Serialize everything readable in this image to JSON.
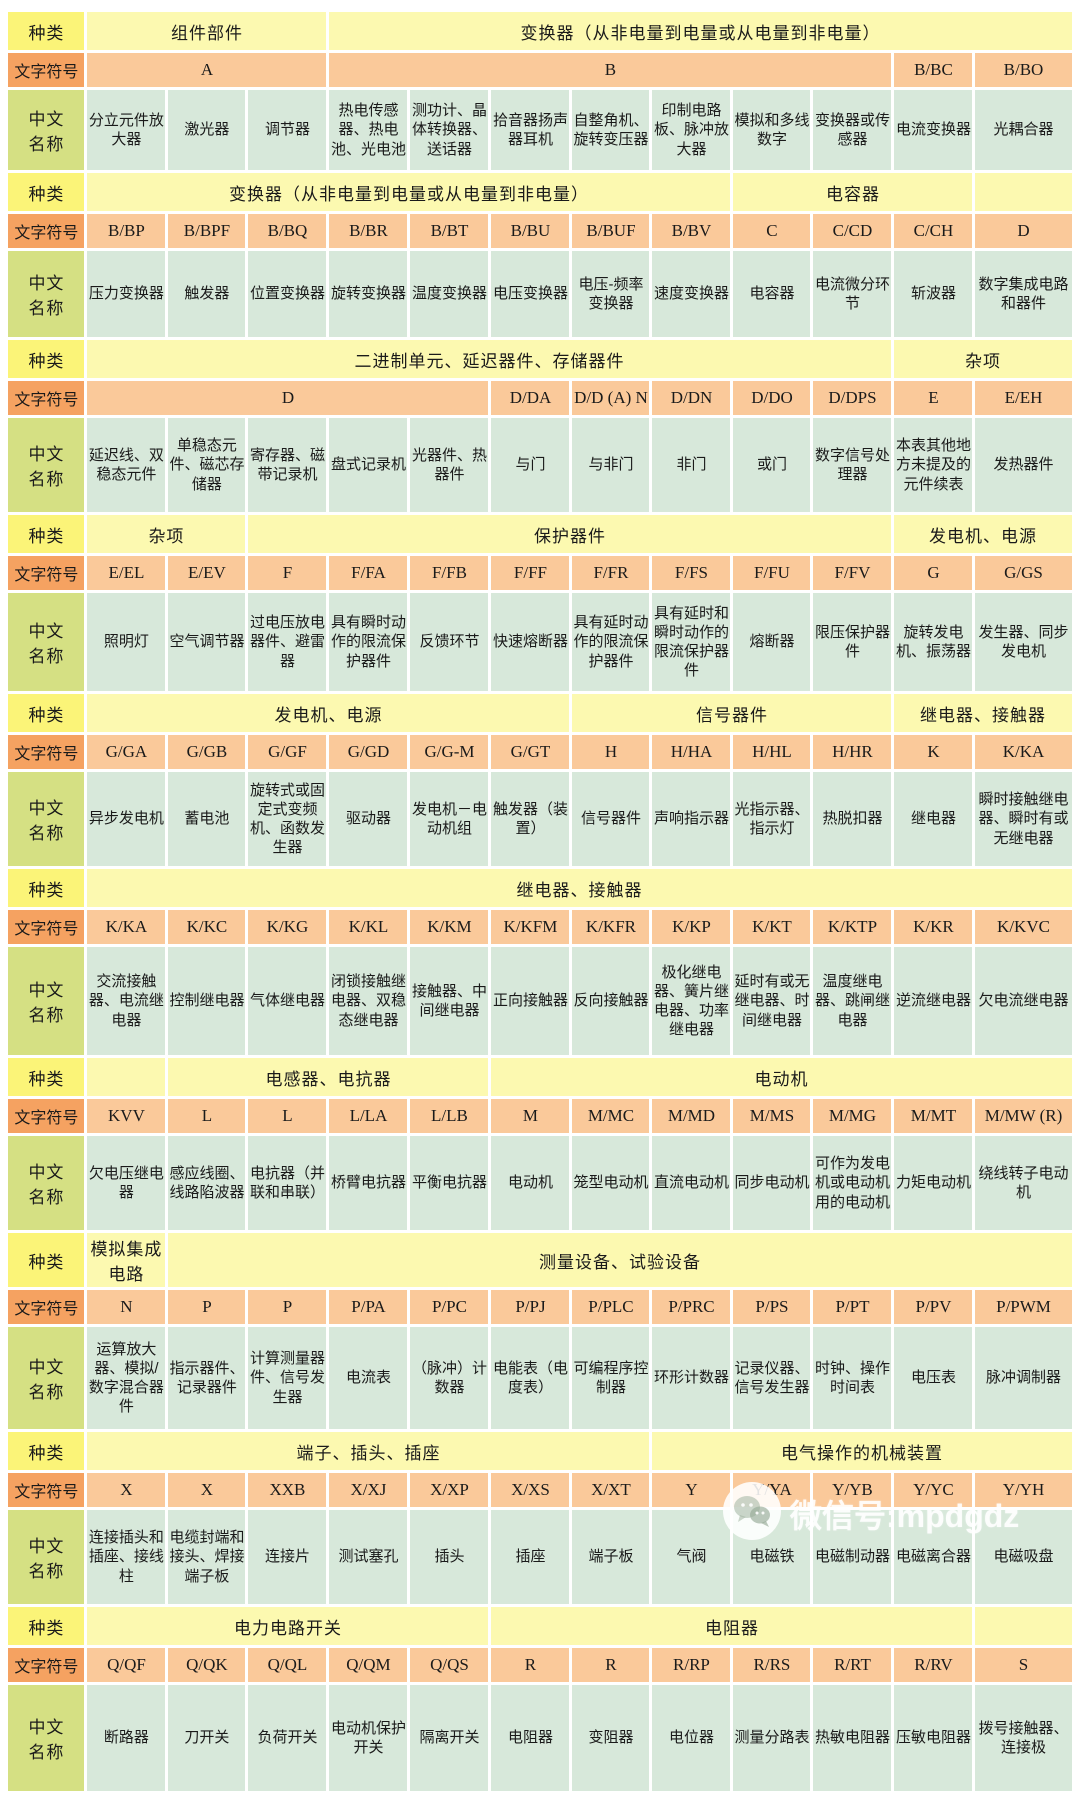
{
  "row_labels": {
    "category": "种类",
    "symbol": "文字符号",
    "name": "中文名称"
  },
  "watermark": {
    "icon": "wechat-icon",
    "text": "微信号:mpdgdz"
  },
  "colors": {
    "category_label_bg": "#fbf478",
    "category_cell_bg": "#fcf9b0",
    "symbol_label_bg": "#f5a261",
    "symbol_cell_bg": "#fac99a",
    "name_label_bg": "#d5e083",
    "name_cell_bg": "#d7e8da",
    "grid_gap": "#ffffff"
  },
  "groups": [
    {
      "category": [
        {
          "text": "组件部件",
          "span": 3
        },
        {
          "text": "变换器（从非电量到电量或从电量到非电量）",
          "span": 9
        }
      ],
      "symbols": [
        {
          "text": "A",
          "span": 3
        },
        {
          "text": "B",
          "span": 7
        },
        "B/BC",
        "B/BO"
      ],
      "names": [
        "分立元件放大器",
        "激光器",
        "调节器",
        "热电传感器、热电池、光电池",
        "测功计、晶体转换器、送话器",
        "拾音器扬声器耳机",
        "自整角机、旋转变压器",
        "印制电路板、脉冲放大器",
        "模拟和多线数字",
        "变换器或传感器",
        "电流变换器",
        "光耦合器"
      ]
    },
    {
      "category": [
        {
          "text": "变换器（从非电量到电量或从电量到非电量）",
          "span": 8
        },
        {
          "text": "电容器",
          "span": 3
        },
        {
          "text": "",
          "span": 1
        }
      ],
      "symbols": [
        "B/BP",
        "B/BPF",
        "B/BQ",
        "B/BR",
        "B/BT",
        "B/BU",
        "B/BUF",
        "B/BV",
        "C",
        "C/CD",
        "C/CH",
        "D"
      ],
      "names": [
        "压力变换器",
        "触发器",
        "位置变换器",
        "旋转变换器",
        "温度变换器",
        "电压变换器",
        "电压-频率变换器",
        "速度变换器",
        "电容器",
        "电流微分环节",
        "斩波器",
        "数字集成电路和器件"
      ]
    },
    {
      "category": [
        {
          "text": "二进制单元、延迟器件、存储器件",
          "span": 10
        },
        {
          "text": "杂项",
          "span": 2
        }
      ],
      "symbols": [
        {
          "text": "D",
          "span": 5
        },
        "D/DA",
        "D/D (A) N",
        "D/DN",
        "D/DO",
        "D/DPS",
        "E",
        "E/EH"
      ],
      "names": [
        "延迟线、双稳态元件",
        "单稳态元件、磁芯存储器",
        "寄存器、磁带记录机",
        "盘式记录机",
        "光器件、热器件",
        "与门",
        "与非门",
        "非门",
        "或门",
        "数字信号处理器",
        "本表其他地方未提及的元件续表",
        "发热器件"
      ]
    },
    {
      "category": [
        {
          "text": "杂项",
          "span": 2
        },
        {
          "text": "保护器件",
          "span": 8
        },
        {
          "text": "发电机、电源",
          "span": 2
        }
      ],
      "symbols": [
        "E/EL",
        "E/EV",
        "F",
        "F/FA",
        "F/FB",
        "F/FF",
        "F/FR",
        "F/FS",
        "F/FU",
        "F/FV",
        "G",
        "G/GS"
      ],
      "names": [
        "照明灯",
        "空气调节器",
        "过电压放电器件、避雷器",
        "具有瞬时动作的限流保护器件",
        "反馈环节",
        "快速熔断器",
        "具有延时动作的限流保护器件",
        "具有延时和瞬时动作的限流保护器件",
        "熔断器",
        "限压保护器件",
        "旋转发电机、振荡器",
        "发生器、同步发电机"
      ]
    },
    {
      "category": [
        {
          "text": "发电机、电源",
          "span": 6
        },
        {
          "text": "信号器件",
          "span": 4
        },
        {
          "text": "继电器、接触器",
          "span": 2
        }
      ],
      "symbols": [
        "G/GA",
        "G/GB",
        "G/GF",
        "G/GD",
        "G/G-M",
        "G/GT",
        "H",
        "H/HA",
        "H/HL",
        "H/HR",
        "K",
        "K/KA"
      ],
      "names": [
        "异步发电机",
        "蓄电池",
        "旋转式或固定式变频机、函数发生器",
        "驱动器",
        "发电机－电动机组",
        "触发器（装置）",
        "信号器件",
        "声响指示器",
        "光指示器、指示灯",
        "热脱扣器",
        "继电器",
        "瞬时接触继电器、瞬时有或无继电器"
      ]
    },
    {
      "category": [
        {
          "text": "继电器、接触器",
          "span": 12
        }
      ],
      "symbols": [
        "K/KA",
        "K/KC",
        "K/KG",
        "K/KL",
        "K/KM",
        "K/KFM",
        "K/KFR",
        "K/KP",
        "K/KT",
        "K/KTP",
        "K/KR",
        "K/KVC"
      ],
      "names": [
        "交流接触器、电流继电器",
        "控制继电器",
        "气体继电器",
        "闭锁接触继电器、双稳态继电器",
        "接触器、中间继电器",
        "正向接触器",
        "反向接触器",
        "极化继电器、簧片继电器、功率继电器",
        "延时有或无继电器、时间继电器",
        "温度继电器、跳闸继电器",
        "逆流继电器",
        "欠电流继电器"
      ]
    },
    {
      "category": [
        {
          "text": "",
          "span": 1
        },
        {
          "text": "电感器、电抗器",
          "span": 4
        },
        {
          "text": "电动机",
          "span": 7
        }
      ],
      "symbols": [
        "KVV",
        "L",
        "L",
        "L/LA",
        "L/LB",
        "M",
        "M/MC",
        "M/MD",
        "M/MS",
        "M/MG",
        "M/MT",
        "M/MW (R)"
      ],
      "names": [
        "欠电压继电器",
        "感应线圈、线路陷波器",
        "电抗器（并联和串联）",
        "桥臂电抗器",
        "平衡电抗器",
        "电动机",
        "笼型电动机",
        "直流电动机",
        "同步电动机",
        "可作为发电机或电动机用的电动机",
        "力矩电动机",
        "绕线转子电动机"
      ]
    },
    {
      "category": [
        {
          "text": "模拟集成电路",
          "span": 1
        },
        {
          "text": "测量设备、试验设备",
          "span": 11
        }
      ],
      "symbols": [
        "N",
        "P",
        "P",
        "P/PA",
        "P/PC",
        "P/PJ",
        "P/PLC",
        "P/PRC",
        "P/PS",
        "P/PT",
        "P/PV",
        "P/PWM"
      ],
      "names": [
        "运算放大器、模拟/数字混合器件",
        "指示器件、记录器件",
        "计算测量器件、信号发生器",
        "电流表",
        "（脉冲）计数器",
        "电能表（电度表）",
        "可编程序控制器",
        "环形计数器",
        "记录仪器、信号发生器",
        "时钟、操作时间表",
        "电压表",
        "脉冲调制器"
      ]
    },
    {
      "category": [
        {
          "text": "端子、插头、插座",
          "span": 7
        },
        {
          "text": "电气操作的机械装置",
          "span": 5
        }
      ],
      "symbols": [
        "X",
        "X",
        "XXB",
        "X/XJ",
        "X/XP",
        "X/XS",
        "X/XT",
        "Y",
        "Y/YA",
        "Y/YB",
        "Y/YC",
        "Y/YH"
      ],
      "names": [
        "连接插头和插座、接线柱",
        "电缆封端和接头、焊接端子板",
        "连接片",
        "测试塞孔",
        "插头",
        "插座",
        "端子板",
        "气阀",
        "电磁铁",
        "电磁制动器",
        "电磁离合器",
        "电磁吸盘"
      ]
    },
    {
      "category": [
        {
          "text": "电力电路开关",
          "span": 5
        },
        {
          "text": "电阻器",
          "span": 6
        },
        {
          "text": "",
          "span": 1
        }
      ],
      "symbols": [
        "Q/QF",
        "Q/QK",
        "Q/QL",
        "Q/QM",
        "Q/QS",
        "R",
        "R",
        "R/RP",
        "R/RS",
        "R/RT",
        "R/RV",
        "S"
      ],
      "names": [
        "断路器",
        "刀开关",
        "负荷开关",
        "电动机保护开关",
        "隔离开关",
        "电阻器",
        "变阻器",
        "电位器",
        "测量分路表",
        "热敏电阻器",
        "压敏电阻器",
        "拨号接触器、连接极"
      ]
    }
  ]
}
